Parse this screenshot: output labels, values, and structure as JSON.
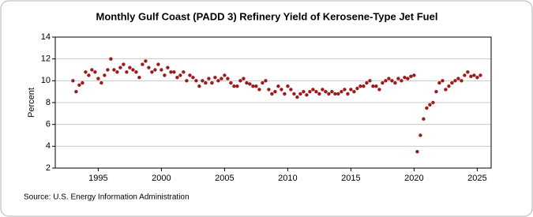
{
  "chart_data": {
    "type": "scatter",
    "title": "Monthly Gulf Coast (PADD 3) Refinery Yield of Kerosene-Type Jet Fuel",
    "y_label": "Percent",
    "source": "Source: U.S. Energy Information Administration",
    "x": [
      1993,
      1993.25,
      1993.5,
      1993.75,
      1994,
      1994.25,
      1994.5,
      1994.75,
      1995,
      1995.25,
      1995.5,
      1995.75,
      1996,
      1996.25,
      1996.5,
      1996.75,
      1997,
      1997.25,
      1997.5,
      1997.75,
      1998,
      1998.25,
      1998.5,
      1998.75,
      1999,
      1999.25,
      1999.5,
      1999.75,
      2000,
      2000.25,
      2000.5,
      2000.75,
      2001,
      2001.25,
      2001.5,
      2001.75,
      2002,
      2002.25,
      2002.5,
      2002.75,
      2003,
      2003.25,
      2003.5,
      2003.75,
      2004,
      2004.25,
      2004.5,
      2004.75,
      2005,
      2005.25,
      2005.5,
      2005.75,
      2006,
      2006.25,
      2006.5,
      2006.75,
      2007,
      2007.25,
      2007.5,
      2007.75,
      2008,
      2008.25,
      2008.5,
      2008.75,
      2009,
      2009.25,
      2009.5,
      2009.75,
      2010,
      2010.25,
      2010.5,
      2010.75,
      2011,
      2011.25,
      2011.5,
      2011.75,
      2012,
      2012.25,
      2012.5,
      2012.75,
      2013,
      2013.25,
      2013.5,
      2013.75,
      2014,
      2014.25,
      2014.5,
      2014.75,
      2015,
      2015.25,
      2015.5,
      2015.75,
      2016,
      2016.25,
      2016.5,
      2016.75,
      2017,
      2017.25,
      2017.5,
      2017.75,
      2018,
      2018.25,
      2018.5,
      2018.75,
      2019,
      2019.25,
      2019.5,
      2019.75,
      2020,
      2020.25,
      2020.5,
      2020.75,
      2021,
      2021.25,
      2021.5,
      2021.75,
      2022,
      2022.25,
      2022.5,
      2022.75,
      2023,
      2023.25,
      2023.5,
      2023.75,
      2024,
      2024.25,
      2024.5,
      2024.75,
      2025,
      2025.25
    ],
    "values": [
      10.0,
      9.0,
      9.6,
      9.8,
      10.8,
      10.5,
      11.0,
      10.8,
      10.2,
      9.8,
      10.5,
      11.0,
      12.0,
      11.0,
      10.8,
      11.2,
      11.5,
      10.8,
      11.2,
      11.0,
      10.8,
      10.3,
      11.5,
      11.8,
      11.2,
      10.8,
      11.0,
      11.5,
      11.0,
      10.5,
      11.2,
      10.8,
      10.8,
      10.3,
      10.5,
      10.8,
      10.0,
      10.5,
      10.3,
      10.0,
      9.5,
      10.0,
      9.8,
      10.2,
      9.8,
      10.3,
      10.0,
      10.2,
      10.5,
      10.2,
      9.8,
      9.5,
      9.5,
      10.0,
      10.2,
      9.8,
      9.7,
      9.5,
      9.5,
      9.2,
      9.8,
      10.0,
      9.2,
      8.8,
      9.0,
      9.5,
      9.2,
      8.8,
      9.5,
      9.2,
      8.8,
      8.5,
      8.8,
      9.0,
      8.7,
      9.0,
      9.2,
      9.0,
      8.8,
      9.2,
      9.0,
      8.8,
      9.0,
      8.8,
      8.8,
      9.0,
      9.2,
      8.8,
      9.2,
      9.0,
      9.3,
      9.5,
      9.5,
      9.8,
      10.0,
      9.5,
      9.5,
      9.2,
      9.8,
      10.0,
      10.2,
      10.0,
      9.8,
      10.2,
      10.0,
      10.3,
      10.2,
      10.4,
      10.5,
      3.5,
      5.0,
      6.5,
      7.5,
      7.8,
      8.0,
      9.0,
      9.8,
      10.0,
      9.2,
      9.5,
      9.8,
      10.0,
      10.2,
      10.0,
      10.5,
      10.8,
      10.4,
      10.5,
      10.3,
      10.5
    ],
    "color": "#9b1b1b",
    "xlim": [
      1991.6,
      2026.1
    ],
    "xticks": [
      1995,
      2000,
      2005,
      2010,
      2015,
      2020,
      2025
    ],
    "ylim": [
      2,
      14
    ],
    "yticks": [
      2,
      4,
      6,
      8,
      10,
      12,
      14
    ],
    "grid": true
  }
}
